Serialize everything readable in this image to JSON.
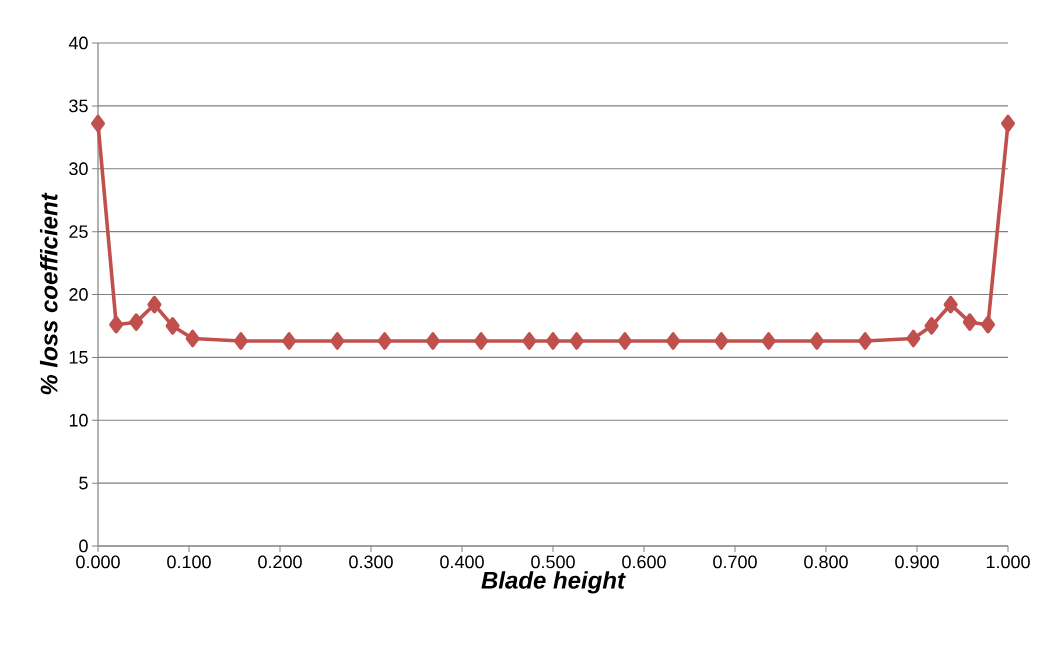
{
  "chart_data": {
    "type": "line",
    "xlabel": "Blade height",
    "ylabel": "% loss coefficient",
    "x": [
      0,
      0.02,
      0.042,
      0.062,
      0.082,
      0.104,
      0.157,
      0.21,
      0.263,
      0.315,
      0.368,
      0.421,
      0.474,
      0.5,
      0.526,
      0.579,
      0.632,
      0.685,
      0.737,
      0.79,
      0.843,
      0.896,
      0.916,
      0.937,
      0.958,
      0.978,
      1
    ],
    "series": [
      {
        "color": "#c0504d",
        "values": [
          33.6,
          17.6,
          17.8,
          19.2,
          17.5,
          16.5,
          16.3,
          16.3,
          16.3,
          16.3,
          16.3,
          16.3,
          16.3,
          16.3,
          16.3,
          16.3,
          16.3,
          16.3,
          16.3,
          16.3,
          16.3,
          16.5,
          17.5,
          19.2,
          17.8,
          17.6,
          33.6
        ]
      }
    ],
    "xlim": [
      0,
      1
    ],
    "ylim": [
      0,
      40
    ],
    "xticks": [
      {
        "value": 0,
        "label": "0.000"
      },
      {
        "value": 0.1,
        "label": "0.100"
      },
      {
        "value": 0.2,
        "label": "0.200"
      },
      {
        "value": 0.3,
        "label": "0.300"
      },
      {
        "value": 0.4,
        "label": "0.400"
      },
      {
        "value": 0.5,
        "label": "0.500"
      },
      {
        "value": 0.6,
        "label": "0.600"
      },
      {
        "value": 0.7,
        "label": "0.700"
      },
      {
        "value": 0.8,
        "label": "0.800"
      },
      {
        "value": 0.9,
        "label": "0.900"
      },
      {
        "value": 1,
        "label": "1.000"
      }
    ],
    "yticks": [
      0,
      5,
      10,
      15,
      20,
      25,
      30,
      35,
      40
    ],
    "grid": "y",
    "marker": "diamond",
    "line_style": "solid"
  }
}
